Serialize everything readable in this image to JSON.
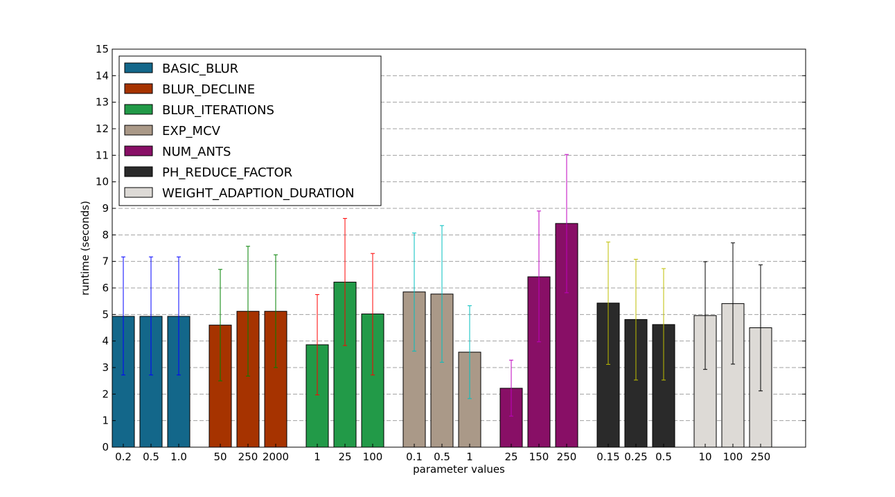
{
  "chart_data": {
    "type": "bar",
    "xlabel": "parameter values",
    "ylabel": "runtime (seconds)",
    "ylim": [
      0,
      15
    ],
    "yticks": [
      0,
      1,
      2,
      3,
      4,
      5,
      6,
      7,
      8,
      9,
      10,
      11,
      12,
      13,
      14,
      15
    ],
    "grid": "horizontal dashed",
    "legend_position": "top-left",
    "series": [
      {
        "name": "BASIC_BLUR",
        "color": "#13678a",
        "err_color": "#0000ff",
        "categories": [
          "0.2",
          "0.5",
          "1.0"
        ],
        "values": [
          4.93,
          4.93,
          4.93
        ],
        "err_low": [
          2.72,
          2.72,
          2.72
        ],
        "err_high": [
          7.17,
          7.17,
          7.17
        ]
      },
      {
        "name": "BLUR_DECLINE",
        "color": "#a63300",
        "err_color": "#008000",
        "categories": [
          "50",
          "250",
          "2000"
        ],
        "values": [
          4.6,
          5.12,
          5.12
        ],
        "err_low": [
          2.5,
          2.68,
          3.0
        ],
        "err_high": [
          6.7,
          7.57,
          7.25
        ]
      },
      {
        "name": "BLUR_ITERATIONS",
        "color": "#229a48",
        "err_color": "#ff0000",
        "categories": [
          "1",
          "25",
          "100"
        ],
        "values": [
          3.86,
          6.22,
          5.02
        ],
        "err_low": [
          1.97,
          3.83,
          2.72
        ],
        "err_high": [
          5.75,
          8.62,
          7.3
        ]
      },
      {
        "name": "EXP_MCV",
        "color": "#aa9988",
        "err_color": "#00bfbf",
        "categories": [
          "0.1",
          "0.5",
          "1"
        ],
        "values": [
          5.85,
          5.77,
          3.58
        ],
        "err_low": [
          3.62,
          3.2,
          1.83
        ],
        "err_high": [
          8.07,
          8.35,
          5.33
        ]
      },
      {
        "name": "NUM_ANTS",
        "color": "#880f66",
        "err_color": "#bf00bf",
        "categories": [
          "25",
          "150",
          "250"
        ],
        "values": [
          2.22,
          6.42,
          8.43
        ],
        "err_low": [
          1.17,
          3.97,
          5.82
        ],
        "err_high": [
          3.28,
          8.9,
          11.03
        ]
      },
      {
        "name": "PH_REDUCE_FACTOR",
        "color": "#2a2a2a",
        "err_color": "#bfbf00",
        "categories": [
          "0.15",
          "0.25",
          "0.5"
        ],
        "values": [
          5.43,
          4.81,
          4.62
        ],
        "err_low": [
          3.12,
          2.53,
          2.53
        ],
        "err_high": [
          7.73,
          7.08,
          6.73
        ]
      },
      {
        "name": "WEIGHT_ADAPTION_DURATION",
        "color": "#dddad6",
        "err_color": "#000000",
        "categories": [
          "10",
          "100",
          "250"
        ],
        "values": [
          4.96,
          5.41,
          4.5
        ],
        "err_low": [
          2.93,
          3.13,
          2.12
        ],
        "err_high": [
          6.99,
          7.7,
          6.87
        ]
      }
    ]
  }
}
